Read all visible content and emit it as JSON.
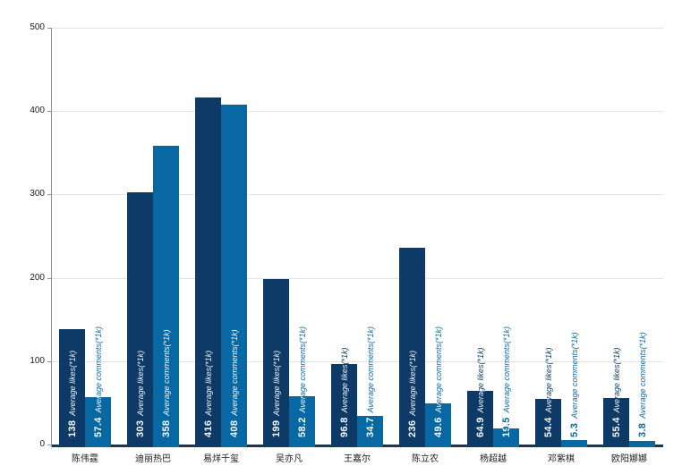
{
  "chart_data": {
    "type": "bar",
    "title": "",
    "xlabel": "",
    "ylabel": "",
    "categories": [
      "陈伟霆",
      "迪丽热巴",
      "易烊千玺",
      "吴亦凡",
      "王嘉尔",
      "陈立农",
      "杨超越",
      "邓紫棋",
      "欧阳娜娜"
    ],
    "series": [
      {
        "key": "likes",
        "name": "Average likes(*1k)",
        "color": "#0d3a67",
        "values": [
          138,
          303,
          416,
          199,
          96.8,
          236,
          64.9,
          54.4,
          55.4
        ]
      },
      {
        "key": "comments",
        "name": "Average comments(*1k)",
        "color": "#0868a3",
        "values": [
          57.4,
          358,
          408,
          58.2,
          34.7,
          49.6,
          19.5,
          5.3,
          3.8
        ]
      }
    ],
    "ylim": [
      0,
      500
    ],
    "yticks": [
      0,
      100,
      200,
      300,
      400,
      500
    ],
    "grid": true,
    "legend_position": "none",
    "bar_label_style": "value and series name rotated 90deg at bar base; white inside bar, bar-colored above bar top",
    "colors": {
      "x_axis_line": "#123660",
      "y_axis_line": "#8f8f8f",
      "gridline": "#e3e3e3",
      "tick_text": "#1a1a1a",
      "background": "#ffffff"
    }
  }
}
